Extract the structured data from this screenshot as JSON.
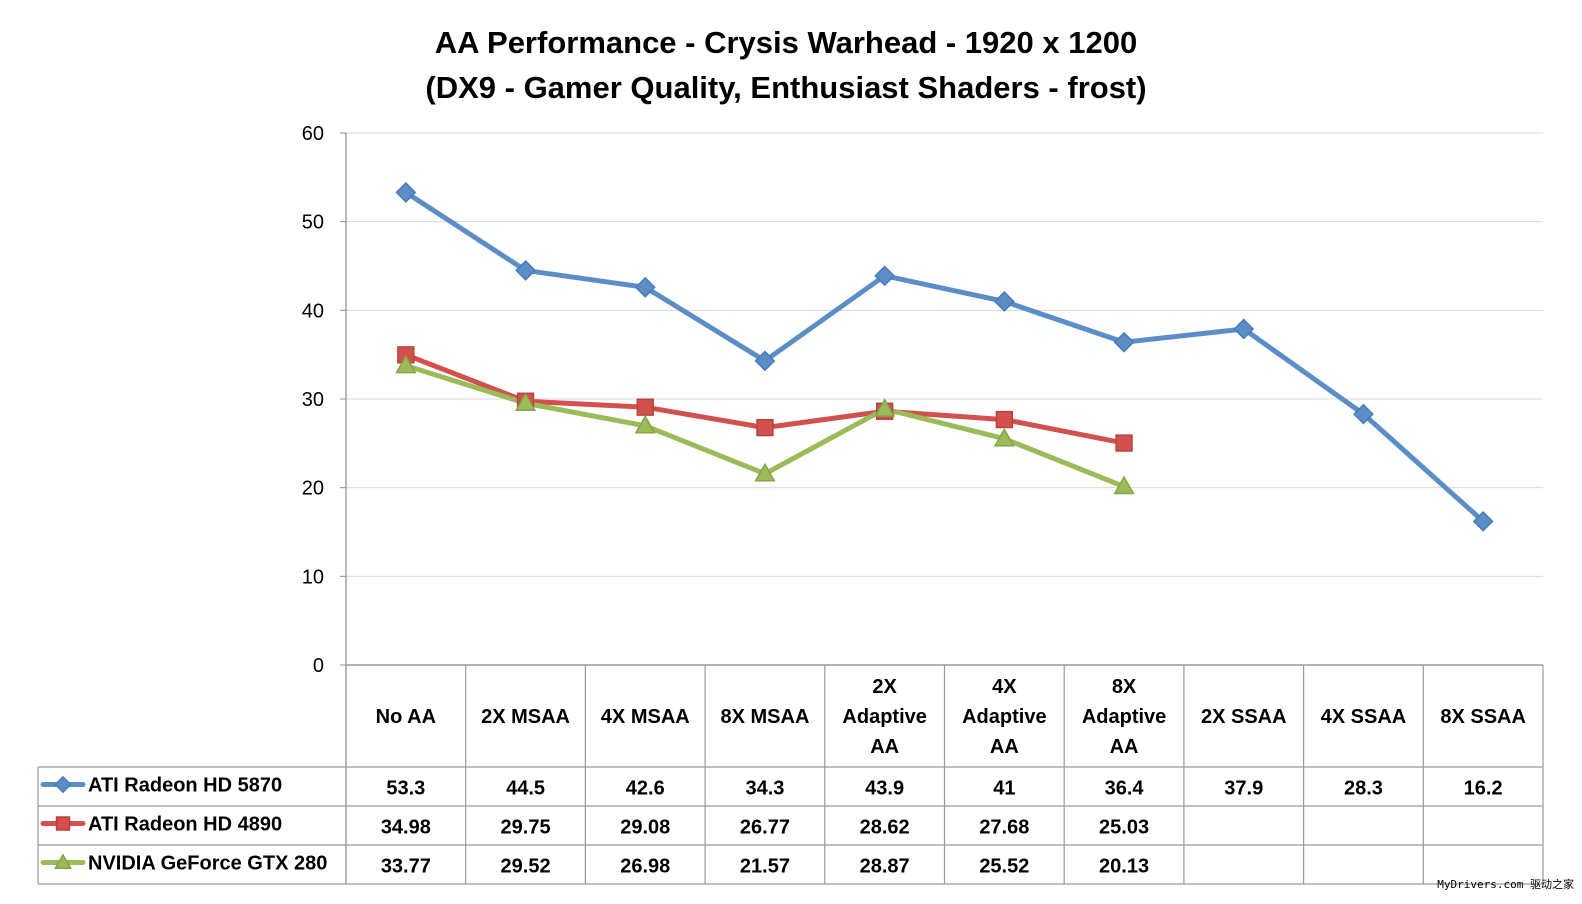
{
  "chart_data": {
    "type": "line",
    "title": [
      "AA Performance - Crysis Warhead - 1920 x 1200",
      "(DX9 - Gamer Quality, Enthusiast Shaders - frost)"
    ],
    "categories": [
      [
        "No AA"
      ],
      [
        "2X MSAA"
      ],
      [
        "4X MSAA"
      ],
      [
        "8X MSAA"
      ],
      [
        "2X",
        "Adaptive",
        "AA"
      ],
      [
        "4X",
        "Adaptive",
        "AA"
      ],
      [
        "8X",
        "Adaptive",
        "AA"
      ],
      [
        "2X SSAA"
      ],
      [
        "4X SSAA"
      ],
      [
        "8X SSAA"
      ]
    ],
    "ylim": [
      0,
      60
    ],
    "yticks": [
      0,
      10,
      20,
      30,
      40,
      50,
      60
    ],
    "grid": true,
    "legend_placement": "data-table-left",
    "series": [
      {
        "name": "ATI Radeon HD 5870",
        "color": "#5b8ec7",
        "marker": "diamond",
        "values": [
          53.3,
          44.5,
          42.6,
          34.3,
          43.9,
          41,
          36.4,
          37.9,
          28.3,
          16.2
        ],
        "labels": [
          "53.3",
          "44.5",
          "42.6",
          "34.3",
          "43.9",
          "41",
          "36.4",
          "37.9",
          "28.3",
          "16.2"
        ]
      },
      {
        "name": "ATI Radeon HD 4890",
        "color": "#d2504d",
        "marker": "square",
        "values": [
          34.98,
          29.75,
          29.08,
          26.77,
          28.62,
          27.68,
          25.03,
          null,
          null,
          null
        ],
        "labels": [
          "34.98",
          "29.75",
          "29.08",
          "26.77",
          "28.62",
          "27.68",
          "25.03",
          "",
          "",
          ""
        ]
      },
      {
        "name": "NVIDIA GeForce GTX 280",
        "color": "#9bbb59",
        "marker": "triangle",
        "values": [
          33.77,
          29.52,
          26.98,
          21.57,
          28.87,
          25.52,
          20.13,
          null,
          null,
          null
        ],
        "labels": [
          "33.77",
          "29.52",
          "26.98",
          "21.57",
          "28.87",
          "25.52",
          "20.13",
          "",
          "",
          ""
        ]
      }
    ]
  },
  "watermark": "MyDrivers.com 驱动之家"
}
